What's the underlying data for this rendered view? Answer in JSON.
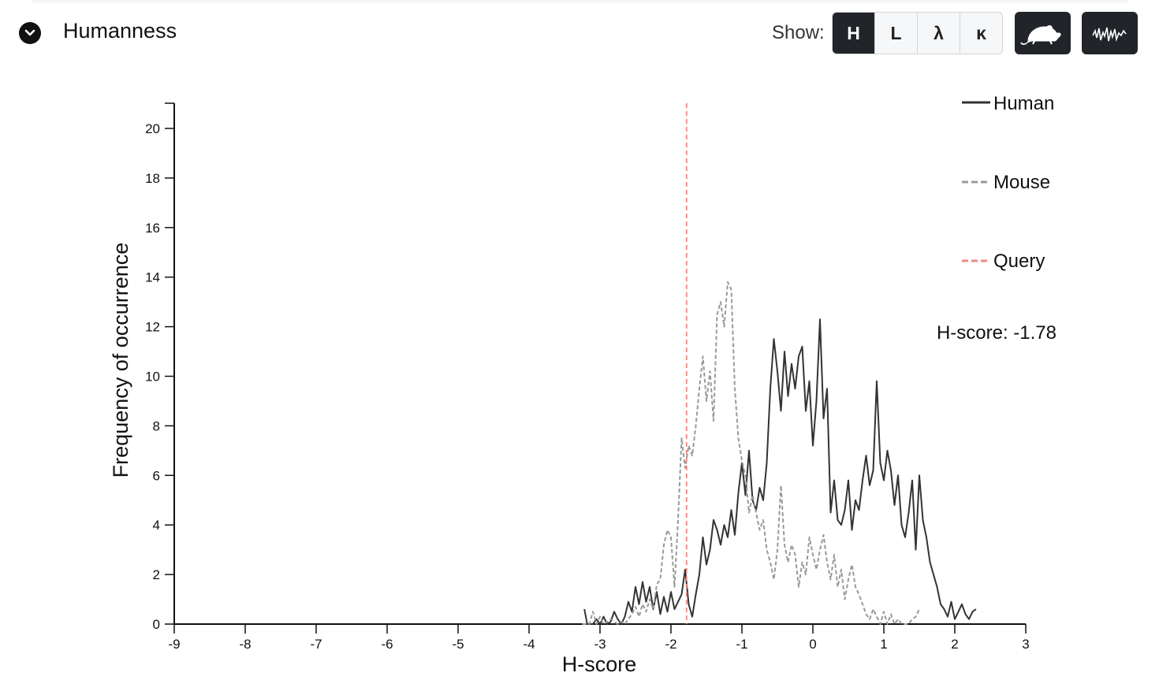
{
  "header": {
    "title": "Humanness",
    "show_label": "Show:",
    "options": [
      "H",
      "L",
      "λ",
      "κ"
    ],
    "active_option": "H",
    "icons": {
      "mouse": "mouse-icon",
      "waveform": "waveform-icon",
      "collapse": "chevron-down-icon"
    }
  },
  "colors": {
    "human": "#333333",
    "mouse": "#999999",
    "query": "#ee8b84",
    "button_dark": "#212529"
  },
  "chart_data": {
    "type": "line",
    "xlabel": "H-score",
    "ylabel": "Frequency of occurrence",
    "xlim": [
      -9,
      3
    ],
    "ylim": [
      0,
      21
    ],
    "x_ticks": [
      -9,
      -8,
      -7,
      -6,
      -5,
      -4,
      -3,
      -2,
      -1,
      0,
      1,
      2,
      3
    ],
    "y_ticks": [
      0,
      2,
      4,
      6,
      8,
      10,
      12,
      14,
      16,
      18,
      20
    ],
    "grid": false,
    "legend_position": "top-right",
    "annotation": "H-score: -1.78",
    "query_value": -1.78,
    "series": [
      {
        "name": "Human",
        "style": "solid",
        "x": [
          -3.22,
          -3.18,
          -3.1,
          -3.05,
          -3.0,
          -2.95,
          -2.9,
          -2.85,
          -2.8,
          -2.75,
          -2.7,
          -2.65,
          -2.6,
          -2.55,
          -2.5,
          -2.45,
          -2.4,
          -2.35,
          -2.3,
          -2.25,
          -2.2,
          -2.15,
          -2.1,
          -2.05,
          -2.0,
          -1.95,
          -1.9,
          -1.85,
          -1.8,
          -1.75,
          -1.7,
          -1.65,
          -1.6,
          -1.55,
          -1.5,
          -1.45,
          -1.4,
          -1.35,
          -1.3,
          -1.25,
          -1.2,
          -1.15,
          -1.1,
          -1.05,
          -1.0,
          -0.95,
          -0.9,
          -0.85,
          -0.8,
          -0.75,
          -0.7,
          -0.65,
          -0.6,
          -0.55,
          -0.5,
          -0.45,
          -0.4,
          -0.35,
          -0.3,
          -0.25,
          -0.2,
          -0.15,
          -0.1,
          -0.05,
          0.0,
          0.05,
          0.1,
          0.15,
          0.2,
          0.25,
          0.3,
          0.35,
          0.4,
          0.45,
          0.5,
          0.55,
          0.6,
          0.65,
          0.7,
          0.75,
          0.8,
          0.85,
          0.9,
          0.95,
          1.0,
          1.05,
          1.1,
          1.15,
          1.2,
          1.25,
          1.3,
          1.35,
          1.4,
          1.45,
          1.5,
          1.55,
          1.6,
          1.65,
          1.7,
          1.75,
          1.8,
          1.85,
          1.9,
          1.95,
          2.0,
          2.05,
          2.1,
          2.15,
          2.2,
          2.25,
          2.3
        ],
        "values": [
          0.6,
          0.0,
          0.0,
          0.2,
          0.0,
          0.3,
          0.0,
          0.1,
          0.5,
          0.2,
          0.0,
          0.3,
          0.9,
          0.5,
          1.5,
          0.8,
          1.7,
          0.9,
          1.5,
          0.6,
          1.3,
          0.4,
          1.1,
          0.5,
          1.3,
          0.6,
          0.9,
          1.2,
          2.2,
          0.8,
          0.3,
          1.2,
          2.0,
          3.5,
          2.4,
          3.0,
          4.2,
          3.8,
          3.2,
          4.0,
          3.5,
          4.6,
          3.6,
          5.3,
          6.5,
          5.2,
          7.0,
          5.0,
          4.6,
          5.5,
          5.0,
          6.5,
          9.5,
          11.5,
          10.2,
          8.6,
          11.0,
          9.2,
          10.5,
          9.5,
          10.8,
          11.2,
          8.6,
          9.8,
          7.2,
          9.0,
          12.3,
          8.3,
          9.5,
          4.5,
          5.8,
          4.2,
          4.0,
          4.6,
          5.8,
          3.8,
          5.0,
          4.6,
          5.8,
          6.8,
          5.6,
          6.2,
          9.8,
          6.5,
          5.8,
          7.0,
          6.2,
          4.8,
          6.0,
          4.0,
          3.5,
          4.5,
          5.8,
          3.0,
          6.0,
          4.2,
          3.5,
          2.5,
          2.0,
          1.5,
          0.8,
          0.6,
          0.3,
          0.9,
          0.2,
          0.5,
          0.8,
          0.4,
          0.2,
          0.5,
          0.6
        ]
      },
      {
        "name": "Mouse",
        "style": "dashed",
        "x": [
          -3.25,
          -3.15,
          -3.1,
          -3.05,
          -3.0,
          -2.95,
          -2.85,
          -2.75,
          -2.7,
          -2.65,
          -2.6,
          -2.55,
          -2.5,
          -2.45,
          -2.4,
          -2.35,
          -2.3,
          -2.25,
          -2.2,
          -2.15,
          -2.1,
          -2.05,
          -2.0,
          -1.95,
          -1.9,
          -1.85,
          -1.8,
          -1.75,
          -1.7,
          -1.65,
          -1.6,
          -1.55,
          -1.5,
          -1.45,
          -1.4,
          -1.35,
          -1.3,
          -1.25,
          -1.2,
          -1.15,
          -1.1,
          -1.05,
          -1.0,
          -0.95,
          -0.9,
          -0.85,
          -0.8,
          -0.75,
          -0.7,
          -0.65,
          -0.6,
          -0.55,
          -0.5,
          -0.45,
          -0.4,
          -0.35,
          -0.3,
          -0.25,
          -0.2,
          -0.15,
          -0.1,
          -0.05,
          0.0,
          0.05,
          0.1,
          0.15,
          0.2,
          0.25,
          0.3,
          0.35,
          0.4,
          0.45,
          0.5,
          0.55,
          0.6,
          0.65,
          0.7,
          0.75,
          0.8,
          0.85,
          0.9,
          0.95,
          1.0,
          1.05,
          1.1,
          1.15,
          1.2,
          1.25,
          1.3,
          1.35,
          1.4,
          1.45,
          1.5
        ],
        "values": [
          0.0,
          0.0,
          0.5,
          0.0,
          0.3,
          0.0,
          0.2,
          0.0,
          0.1,
          0.0,
          0.2,
          0.4,
          0.7,
          0.3,
          0.8,
          0.5,
          1.0,
          0.6,
          1.6,
          1.8,
          3.2,
          3.8,
          3.5,
          1.5,
          4.2,
          7.5,
          6.3,
          7.2,
          6.8,
          8.0,
          9.5,
          10.8,
          9.0,
          10.2,
          8.2,
          12.5,
          13.0,
          12.0,
          13.8,
          13.5,
          9.5,
          7.5,
          6.6,
          6.0,
          4.5,
          5.2,
          4.5,
          3.8,
          4.2,
          3.0,
          2.5,
          1.8,
          3.0,
          5.6,
          3.2,
          2.5,
          3.2,
          2.8,
          1.5,
          2.5,
          2.0,
          3.5,
          2.8,
          2.2,
          3.0,
          3.6,
          2.5,
          1.8,
          2.8,
          1.5,
          2.2,
          1.0,
          1.8,
          2.4,
          1.5,
          1.2,
          0.8,
          0.4,
          0.2,
          0.6,
          0.3,
          0.0,
          0.5,
          0.0,
          0.4,
          0.0,
          0.2,
          0.0,
          0.0,
          0.0,
          0.2,
          0.3,
          0.6
        ]
      },
      {
        "name": "Query",
        "style": "dashed-red"
      }
    ]
  }
}
